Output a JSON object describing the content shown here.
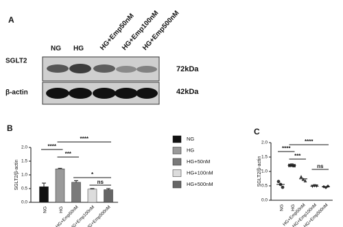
{
  "panel_a": {
    "label": "A",
    "lanes": [
      "NG",
      "HG",
      "HG+Emp50nM",
      "HG+Emp100nM",
      "HG+Emp500nM"
    ],
    "rows": [
      {
        "protein": "SGLT2",
        "size": "72kDa"
      },
      {
        "protein": "β-actin",
        "size": "42kDa"
      }
    ]
  },
  "chart_data": [
    {
      "type": "bar",
      "panel_label": "B",
      "ylabel": "SGLT2/β-actin",
      "categories": [
        "NG",
        "HG",
        "HG+Emp50nM",
        "HG+Emp100nM",
        "HG+Emp500nM"
      ],
      "values": [
        0.57,
        1.22,
        0.73,
        0.48,
        0.46
      ],
      "errors": [
        0.13,
        0.02,
        0.06,
        0.02,
        0.04
      ],
      "colors": [
        "#111111",
        "#9a9a9a",
        "#7a7a7a",
        "#dcdcdc",
        "#666666"
      ],
      "legend": [
        "NG",
        "HG",
        "HG+50nM",
        "HG+100nM",
        "HG+500nM"
      ],
      "ylim": [
        0,
        2.0
      ],
      "yticks": [
        {
          "value": 0,
          "label": "0.0"
        },
        {
          "value": 0.5,
          "label": "0.5"
        },
        {
          "value": 1.0,
          "label": "1.0"
        },
        {
          "value": 1.5,
          "label": "1.5"
        },
        {
          "value": 2.0,
          "label": "2.0"
        }
      ],
      "annotations": [
        {
          "text": "****",
          "categories": [
            "NG",
            "HG"
          ]
        },
        {
          "text": "***",
          "categories": [
            "HG",
            "HG+Emp50nM"
          ]
        },
        {
          "text": "****",
          "categories": [
            "HG",
            "HG+Emp500nM"
          ]
        },
        {
          "text": "*",
          "categories": [
            "HG+Emp50nM",
            "HG+Emp500nM"
          ]
        },
        {
          "text": "ns",
          "categories": [
            "HG+Emp100nM",
            "HG+Emp500nM"
          ]
        }
      ]
    },
    {
      "type": "scatter",
      "panel_label": "C",
      "ylabel": "SGLT2/β-actin",
      "categories": [
        "NG",
        "HG",
        "HG+Emp50nM",
        "HG+Emp100nM",
        "HG+Emp500nM"
      ],
      "values": [
        [
          0.65,
          0.55,
          0.45
        ],
        [
          1.21,
          1.22,
          1.2
        ],
        [
          0.82,
          0.73,
          0.68
        ],
        [
          0.48,
          0.5,
          0.49
        ],
        [
          0.47,
          0.44,
          0.49
        ]
      ],
      "markers": [
        "circle",
        "square",
        "triangle",
        "triangle-down",
        "diamond"
      ],
      "color": "#333333",
      "ylim": [
        0,
        2.0
      ],
      "yticks": [
        {
          "value": 0,
          "label": "0.0"
        },
        {
          "value": 0.5,
          "label": "0.5"
        },
        {
          "value": 1.0,
          "label": "1.0"
        },
        {
          "value": 1.5,
          "label": "1.5"
        },
        {
          "value": 2.0,
          "label": "2.0"
        }
      ],
      "annotations": [
        {
          "text": "****",
          "categories": [
            "NG",
            "HG"
          ]
        },
        {
          "text": "***",
          "categories": [
            "HG",
            "HG+Emp50nM"
          ]
        },
        {
          "text": "****",
          "categories": [
            "HG",
            "HG+Emp500nM"
          ]
        },
        {
          "text": "ns",
          "categories": [
            "HG+Emp100nM",
            "HG+Emp500nM"
          ]
        }
      ]
    }
  ]
}
